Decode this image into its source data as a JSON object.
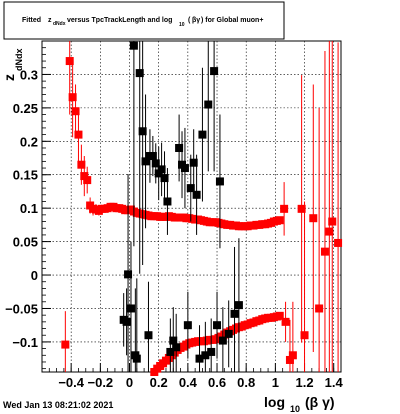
{
  "header": {
    "title_parts": [
      "Fitted",
      "z",
      "dNdx",
      "versus TpcTrackLength and log",
      "10",
      "(",
      "βγ",
      ") for Global muon+"
    ]
  },
  "footer": {
    "timestamp": "Wed Jan 13 08:21:02 2021"
  },
  "colors": {
    "red": "#ff0000",
    "black": "#000000",
    "grid": "#000000"
  },
  "chart_data": {
    "type": "scatter",
    "title": "Fitted zdNdx versus TpcTrackLength and log10(βγ) for Global muon+",
    "xlabel_main": "log",
    "xlabel_sub": "10",
    "xlabel_rest": "(β γ)",
    "ylabel_main": "z",
    "ylabel_sub": "dNdx",
    "xlim": [
      -0.6,
      1.45
    ],
    "ylim": [
      -0.145,
      0.35
    ],
    "x_ticks": [
      -0.4,
      -0.2,
      0,
      0.2,
      0.4,
      0.6,
      0.8,
      1,
      1.2,
      1.4
    ],
    "x_tick_labels": [
      "−0.4",
      "−0.2",
      "0",
      "0.2",
      "0.4",
      "0.6",
      "0.8",
      "1",
      "1.2",
      "1.4"
    ],
    "y_ticks": [
      -0.1,
      -0.05,
      0,
      0.05,
      0.1,
      0.15,
      0.2,
      0.25,
      0.3
    ],
    "y_tick_labels": [
      "−0.1",
      "−0.05",
      "0",
      "0.05",
      "0.1",
      "0.15",
      "0.2",
      "0.25",
      "0.3"
    ],
    "grid": true,
    "series": [
      {
        "color": "#ff0000",
        "points": [
          [
            -0.44,
            -0.104,
            0.05
          ],
          [
            -0.41,
            0.32,
            0.08
          ],
          [
            -0.39,
            0.266,
            0.06
          ],
          [
            -0.37,
            0.245,
            0.04
          ],
          [
            -0.35,
            0.21,
            0.04
          ],
          [
            -0.33,
            0.165,
            0.03
          ],
          [
            -0.31,
            0.148,
            0.03
          ],
          [
            -0.29,
            0.142,
            0.02
          ],
          [
            -0.27,
            0.104,
            0.012
          ],
          [
            -0.25,
            0.099,
            0.01
          ],
          [
            -0.23,
            0.098,
            0.008
          ],
          [
            -0.21,
            0.096,
            0.007
          ],
          [
            -0.19,
            0.099,
            0.006
          ],
          [
            -0.17,
            0.099,
            0.005
          ],
          [
            -0.15,
            0.1,
            0.005
          ],
          [
            -0.13,
            0.102,
            0.005
          ],
          [
            -0.11,
            0.102,
            0.005
          ],
          [
            -0.09,
            0.1,
            0.005
          ],
          [
            -0.07,
            0.1,
            0.005
          ],
          [
            -0.05,
            0.099,
            0.004
          ],
          [
            -0.03,
            0.097,
            0.004
          ],
          [
            -0.01,
            0.097,
            0.004
          ],
          [
            0.01,
            0.098,
            0.004
          ],
          [
            0.03,
            0.095,
            0.004
          ],
          [
            0.05,
            0.093,
            0.004
          ],
          [
            0.07,
            0.092,
            0.004
          ],
          [
            0.09,
            0.091,
            0.004
          ],
          [
            0.11,
            0.09,
            0.004
          ],
          [
            0.13,
            0.089,
            0.004
          ],
          [
            0.15,
            0.088,
            0.004
          ],
          [
            0.17,
            0.088,
            0.004
          ],
          [
            0.19,
            0.088,
            0.004
          ],
          [
            0.21,
            0.087,
            0.004
          ],
          [
            0.23,
            0.087,
            0.004
          ],
          [
            0.25,
            0.087,
            0.004
          ],
          [
            0.27,
            0.088,
            0.004
          ],
          [
            0.29,
            0.087,
            0.004
          ],
          [
            0.31,
            0.086,
            0.004
          ],
          [
            0.33,
            0.086,
            0.004
          ],
          [
            0.35,
            0.086,
            0.004
          ],
          [
            0.37,
            0.086,
            0.004
          ],
          [
            0.39,
            0.085,
            0.004
          ],
          [
            0.41,
            0.085,
            0.004
          ],
          [
            0.43,
            0.084,
            0.004
          ],
          [
            0.45,
            0.083,
            0.004
          ],
          [
            0.47,
            0.083,
            0.004
          ],
          [
            0.49,
            0.082,
            0.004
          ],
          [
            0.51,
            0.081,
            0.004
          ],
          [
            0.53,
            0.08,
            0.004
          ],
          [
            0.55,
            0.079,
            0.004
          ],
          [
            0.57,
            0.079,
            0.004
          ],
          [
            0.59,
            0.079,
            0.004
          ],
          [
            0.61,
            0.078,
            0.004
          ],
          [
            0.63,
            0.077,
            0.004
          ],
          [
            0.65,
            0.076,
            0.004
          ],
          [
            0.67,
            0.075,
            0.004
          ],
          [
            0.69,
            0.075,
            0.004
          ],
          [
            0.71,
            0.074,
            0.004
          ],
          [
            0.73,
            0.074,
            0.004
          ],
          [
            0.75,
            0.073,
            0.004
          ],
          [
            0.77,
            0.073,
            0.004
          ],
          [
            0.79,
            0.073,
            0.004
          ],
          [
            0.81,
            0.073,
            0.004
          ],
          [
            0.83,
            0.074,
            0.004
          ],
          [
            0.85,
            0.074,
            0.004
          ],
          [
            0.87,
            0.075,
            0.004
          ],
          [
            0.89,
            0.075,
            0.004
          ],
          [
            0.91,
            0.076,
            0.004
          ],
          [
            0.93,
            0.076,
            0.004
          ],
          [
            0.95,
            0.077,
            0.004
          ],
          [
            0.97,
            0.078,
            0.004
          ],
          [
            0.99,
            0.08,
            0.004
          ],
          [
            1.01,
            0.081,
            0.004
          ],
          [
            1.03,
            0.082,
            0.004
          ],
          [
            0.17,
            -0.145,
            0.005
          ],
          [
            0.19,
            -0.14,
            0.005
          ],
          [
            0.21,
            -0.136,
            0.005
          ],
          [
            0.23,
            -0.132,
            0.005
          ],
          [
            0.25,
            -0.128,
            0.005
          ],
          [
            0.27,
            -0.124,
            0.005
          ],
          [
            0.29,
            -0.12,
            0.005
          ],
          [
            0.31,
            -0.116,
            0.005
          ],
          [
            0.33,
            -0.112,
            0.005
          ],
          [
            0.35,
            -0.109,
            0.005
          ],
          [
            0.37,
            -0.107,
            0.005
          ],
          [
            0.39,
            -0.104,
            0.005
          ],
          [
            0.41,
            -0.102,
            0.005
          ],
          [
            0.43,
            -0.101,
            0.005
          ],
          [
            0.45,
            -0.1,
            0.005
          ],
          [
            0.47,
            -0.099,
            0.005
          ],
          [
            0.49,
            -0.099,
            0.005
          ],
          [
            0.51,
            -0.099,
            0.005
          ],
          [
            0.53,
            -0.098,
            0.005
          ],
          [
            0.55,
            -0.097,
            0.005
          ],
          [
            0.57,
            -0.097,
            0.005
          ],
          [
            0.59,
            -0.096,
            0.005
          ],
          [
            0.61,
            -0.094,
            0.005
          ],
          [
            0.63,
            -0.092,
            0.005
          ],
          [
            0.65,
            -0.089,
            0.005
          ],
          [
            0.67,
            -0.086,
            0.005
          ],
          [
            0.69,
            -0.084,
            0.005
          ],
          [
            0.71,
            -0.082,
            0.005
          ],
          [
            0.73,
            -0.08,
            0.005
          ],
          [
            0.75,
            -0.078,
            0.005
          ],
          [
            0.77,
            -0.077,
            0.005
          ],
          [
            0.79,
            -0.075,
            0.005
          ],
          [
            0.81,
            -0.074,
            0.005
          ],
          [
            0.83,
            -0.072,
            0.005
          ],
          [
            0.85,
            -0.071,
            0.005
          ],
          [
            0.87,
            -0.069,
            0.005
          ],
          [
            0.89,
            -0.068,
            0.005
          ],
          [
            0.91,
            -0.066,
            0.005
          ],
          [
            0.93,
            -0.065,
            0.005
          ],
          [
            0.95,
            -0.064,
            0.005
          ],
          [
            0.97,
            -0.064,
            0.005
          ],
          [
            0.99,
            -0.063,
            0.005
          ],
          [
            1.01,
            -0.062,
            0.005
          ],
          [
            1.03,
            -0.061,
            0.005
          ],
          [
            1.06,
            0.099,
            0.04
          ],
          [
            1.07,
            -0.07,
            0.03
          ],
          [
            1.1,
            -0.127,
            0.06
          ],
          [
            1.12,
            -0.12,
            0.08
          ],
          [
            1.18,
            0.099,
            0.2
          ],
          [
            1.2,
            -0.09,
            0.2
          ],
          [
            1.26,
            0.085,
            0.2
          ],
          [
            1.3,
            -0.05,
            0.3
          ],
          [
            1.34,
            0.035,
            0.3
          ],
          [
            1.37,
            0.065,
            0.3
          ],
          [
            1.39,
            0.08,
            0.3
          ],
          [
            1.43,
            0.048,
            0.3
          ]
        ]
      },
      {
        "color": "#000000",
        "points": [
          [
            -0.04,
            -0.067,
            0.04
          ],
          [
            -0.02,
            -0.07,
            0.05
          ],
          [
            -0.01,
            0.001,
            0.15
          ],
          [
            0.01,
            -0.05,
            0.1
          ],
          [
            0.03,
            0.343,
            0.3
          ],
          [
            0.04,
            -0.12,
            0.1
          ],
          [
            0.05,
            -0.125,
            0.12
          ],
          [
            0.07,
            0.302,
            0.3
          ],
          [
            0.09,
            0.215,
            0.2
          ],
          [
            0.11,
            0.17,
            0.1
          ],
          [
            0.13,
            -0.09,
            0.08
          ],
          [
            0.14,
            0.178,
            0.04
          ],
          [
            0.16,
            0.178,
            0.03
          ],
          [
            0.18,
            0.167,
            0.03
          ],
          [
            0.2,
            0.152,
            0.04
          ],
          [
            0.22,
            0.158,
            0.04
          ],
          [
            0.24,
            0.145,
            0.04
          ],
          [
            0.26,
            0.11,
            0.05
          ],
          [
            0.28,
            -0.115,
            0.05
          ],
          [
            0.3,
            -0.098,
            0.05
          ],
          [
            0.32,
            -0.108,
            0.05
          ],
          [
            0.34,
            0.19,
            0.05
          ],
          [
            0.36,
            0.165,
            0.05
          ],
          [
            0.38,
            0.16,
            0.06
          ],
          [
            0.4,
            -0.075,
            0.05
          ],
          [
            0.42,
            0.13,
            0.05
          ],
          [
            0.44,
            0.168,
            0.05
          ],
          [
            0.46,
            0.12,
            0.06
          ],
          [
            0.48,
            -0.125,
            0.05
          ],
          [
            0.5,
            0.21,
            0.1
          ],
          [
            0.52,
            -0.12,
            0.05
          ],
          [
            0.54,
            0.255,
            0.1
          ],
          [
            0.56,
            -0.115,
            0.05
          ],
          [
            0.58,
            0.305,
            0.15
          ],
          [
            0.6,
            -0.075,
            0.05
          ],
          [
            0.62,
            0.14,
            0.1
          ],
          [
            0.64,
            -0.098,
            0.05
          ],
          [
            0.68,
            -0.088,
            0.05
          ],
          [
            0.72,
            -0.058,
            0.1
          ],
          [
            0.75,
            -0.045,
            0.1
          ]
        ]
      }
    ]
  }
}
